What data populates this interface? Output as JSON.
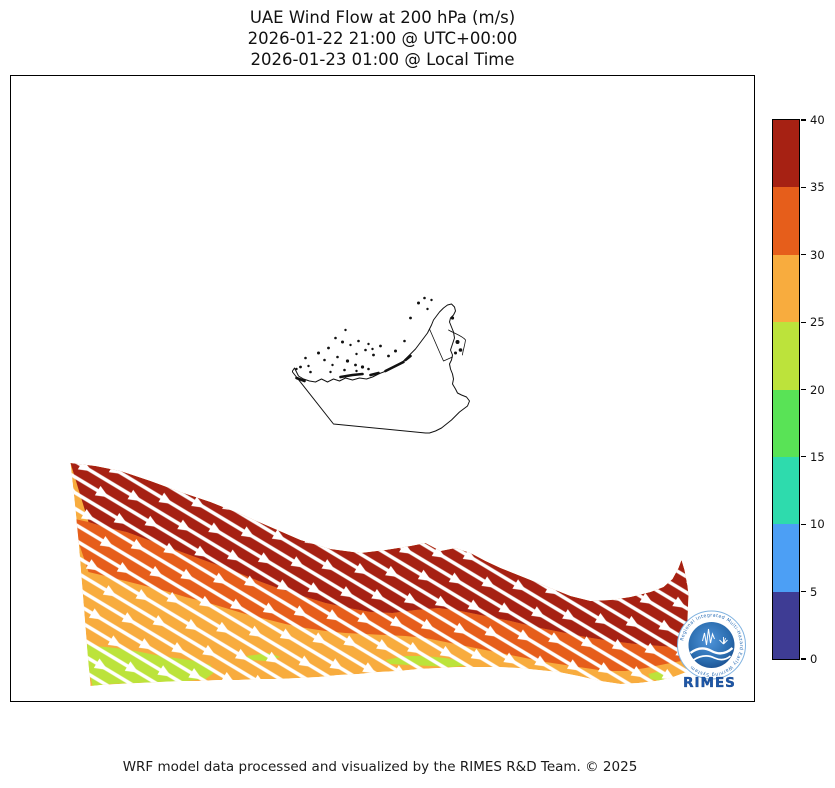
{
  "title": {
    "line1": "UAE Wind Flow at 200 hPa (m/s)",
    "line2": "2026-01-22 21:00 @ UTC+00:00",
    "line3": "2026-01-23 01:00 @ Local Time"
  },
  "footer": "WRF model data processed and visualized by the RIMES R&D Team. © 2025",
  "colorbar": {
    "ticks_top_to_bottom": [
      "40",
      "35",
      "30",
      "25",
      "20",
      "15",
      "10",
      "5",
      "0"
    ],
    "colors_top_to_bottom": [
      "#A62113",
      "#E65E1B",
      "#F8AC3E",
      "#BCE33B",
      "#59E356",
      "#2EDBAD",
      "#4C9FF5",
      "#3E3C94"
    ]
  },
  "logo": {
    "name": "RIMES",
    "ring_text": "Regional Integrated Multi-Hazard Early Warning System"
  },
  "chart_data": {
    "type": "map-streamplot",
    "title": "UAE Wind Flow at 200 hPa (m/s)",
    "valid_time_utc": "2026-01-22 21:00 @ UTC+00:00",
    "valid_time_local": "2026-01-23 01:00 @ Local Time",
    "variable": "wind speed at 200 hPa",
    "units": "m/s",
    "colorbar_ticks": [
      0,
      5,
      10,
      15,
      20,
      25,
      30,
      35,
      40
    ],
    "colorbar_colors_low_to_high": [
      "#3E3C94",
      "#4C9FF5",
      "#2EDBAD",
      "#59E356",
      "#BCE33B",
      "#F8AC3E",
      "#E65E1B",
      "#A62113"
    ],
    "features": {
      "jet_stream_band": {
        "location": "southern portion of map domain, below the UAE outline",
        "orientation": "band runs WNW-ESE, sloping down from upper-left to lower-right",
        "speed_ranges_present_ms": [
          [
            20,
            25
          ],
          [
            25,
            30
          ],
          [
            30,
            35
          ],
          [
            35,
            40
          ]
        ],
        "max_speed_layer_ms": [
          35,
          40
        ],
        "layering_top_to_bottom": [
          "35-40 dark red",
          "30-35 orange-red",
          "25-30 orange",
          "20-25 yellow-green patches at lower edge"
        ],
        "flow_direction": "eastward / east-southeastward (white streamline arrows point down-right)"
      },
      "map_overlay": "UAE coastline, national borders and offshore islands drawn in black over white background",
      "rest_of_domain": "no wind shading above ~20 m/s band region (blank/white)"
    }
  }
}
